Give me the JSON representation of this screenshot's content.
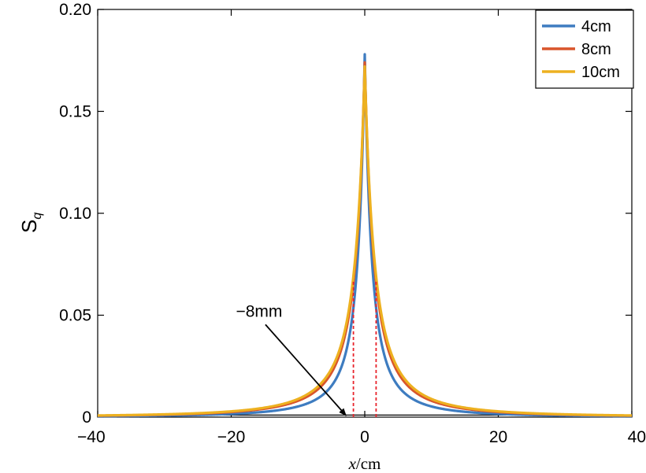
{
  "chart_data": {
    "type": "line",
    "title": "",
    "xlabel": "x/cm",
    "xlabel_parts": {
      "var": "x",
      "unit": "/cm"
    },
    "ylabel": "S",
    "ylabel_subscript": "q",
    "xlim": [
      -40,
      40
    ],
    "ylim": [
      0,
      0.2
    ],
    "xticks": [
      -40,
      -20,
      0,
      20,
      40
    ],
    "xtick_labels": [
      "−40",
      "−20",
      "0",
      "20",
      "40"
    ],
    "yticks": [
      0,
      0.05,
      0.1,
      0.15,
      0.2
    ],
    "ytick_labels": [
      "0",
      "0.05",
      "0.10",
      "0.15",
      "0.20"
    ],
    "grid": false,
    "legend_position": "top-right",
    "series": [
      {
        "name": "4cm",
        "color": "#3e7cc0",
        "peak": 0.178,
        "x": [
          -40,
          -20,
          -10,
          -5,
          -2,
          -1,
          0,
          1,
          2,
          5,
          10,
          20,
          40
        ],
        "values": [
          0.0004,
          0.0016,
          0.0055,
          0.016,
          0.046,
          0.083,
          0.178,
          0.083,
          0.046,
          0.016,
          0.0055,
          0.0016,
          0.0004
        ]
      },
      {
        "name": "8cm",
        "color": "#d9552b",
        "peak": 0.174,
        "x": [
          -40,
          -20,
          -10,
          -5,
          -2,
          -1,
          0,
          1,
          2,
          5,
          10,
          20,
          40
        ],
        "values": [
          0.0012,
          0.0042,
          0.012,
          0.026,
          0.058,
          0.094,
          0.174,
          0.094,
          0.058,
          0.026,
          0.012,
          0.0042,
          0.0012
        ]
      },
      {
        "name": "10cm",
        "color": "#edb120",
        "peak": 0.172,
        "x": [
          -40,
          -20,
          -10,
          -5,
          -2,
          -1,
          0,
          1,
          2,
          5,
          10,
          20,
          40
        ],
        "values": [
          0.0015,
          0.005,
          0.014,
          0.029,
          0.061,
          0.097,
          0.172,
          0.097,
          0.061,
          0.029,
          0.014,
          0.005,
          0.0015
        ]
      }
    ],
    "markers": [
      {
        "x": -1.7,
        "y_top": 0.067,
        "color": "#e8242c",
        "style": "dashed"
      },
      {
        "x": 1.7,
        "y_top": 0.067,
        "color": "#e8242c",
        "style": "dashed"
      }
    ],
    "baseline": {
      "y": 0.001,
      "color": "#000000"
    },
    "annotations": [
      {
        "text": "−8mm",
        "text_x": -17,
        "text_y": 0.04,
        "arrow_to_x": -2.8,
        "arrow_to_y": 0.0
      }
    ]
  }
}
